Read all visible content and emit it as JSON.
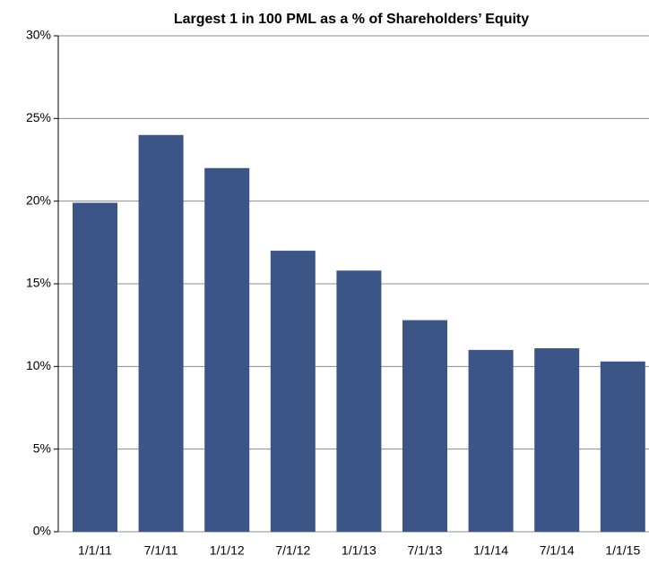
{
  "chart_data": {
    "type": "bar",
    "title": "Largest 1 in 100 PML as a % of Shareholders’ Equity",
    "categories": [
      "1/1/11",
      "7/1/11",
      "1/1/12",
      "7/1/12",
      "1/1/13",
      "7/1/13",
      "1/1/14",
      "7/1/14",
      "1/1/15"
    ],
    "values": [
      19.9,
      24,
      22,
      17,
      15.8,
      12.8,
      11,
      11.1,
      10.3
    ],
    "color": "#3c5587",
    "ylim": [
      0,
      30
    ],
    "yticks": [
      {
        "value": 0,
        "label": "0%"
      },
      {
        "value": 5,
        "label": "5%"
      },
      {
        "value": 10,
        "label": "10%"
      },
      {
        "value": 15,
        "label": "15%"
      },
      {
        "value": 20,
        "label": "20%"
      },
      {
        "value": 25,
        "label": "25%"
      },
      {
        "value": 30,
        "label": "30%"
      }
    ],
    "grid": true
  }
}
